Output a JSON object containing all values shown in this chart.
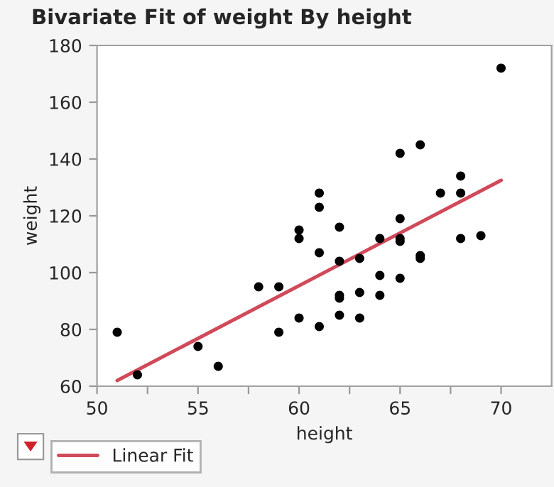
{
  "chart_data": {
    "type": "scatter",
    "title": "Bivariate Fit of weight By height",
    "xlabel": "height",
    "ylabel": "weight",
    "xlim": [
      50,
      72.5
    ],
    "xticks": [
      50,
      {
        "value": 52.5,
        "label": null
      },
      55,
      {
        "value": 57.5,
        "label": null
      },
      60,
      {
        "value": 62.5,
        "label": null
      },
      65,
      {
        "value": 67.5,
        "label": null
      },
      70
    ],
    "ylim": [
      60,
      180
    ],
    "yticks": [
      60,
      80,
      100,
      120,
      140,
      160,
      180
    ],
    "grid": false,
    "legend": "bottom",
    "series": [
      {
        "marker": "circle",
        "color": "#000000",
        "x": [
          51,
          52,
          55,
          56,
          58,
          59,
          59,
          60,
          60,
          60,
          61,
          61,
          61,
          61,
          62,
          62,
          62,
          62,
          62,
          63,
          63,
          63,
          64,
          64,
          64,
          65,
          65,
          65,
          65,
          65,
          66,
          66,
          66,
          67,
          68,
          68,
          68,
          69,
          70
        ],
        "values": [
          79,
          64,
          74,
          67,
          95,
          95,
          79,
          115,
          112,
          84,
          128,
          123,
          107,
          81,
          116,
          104,
          92,
          91,
          85,
          105,
          93,
          84,
          112,
          99,
          92,
          142,
          119,
          112,
          111,
          98,
          145,
          106,
          105,
          128,
          134,
          128,
          112,
          113,
          172
        ]
      },
      {
        "type": "line",
        "marker": "none",
        "name": "Linear Fit",
        "color": "#d04a5a",
        "x": [
          51,
          70
        ],
        "values": [
          62,
          132.5
        ]
      }
    ]
  }
}
